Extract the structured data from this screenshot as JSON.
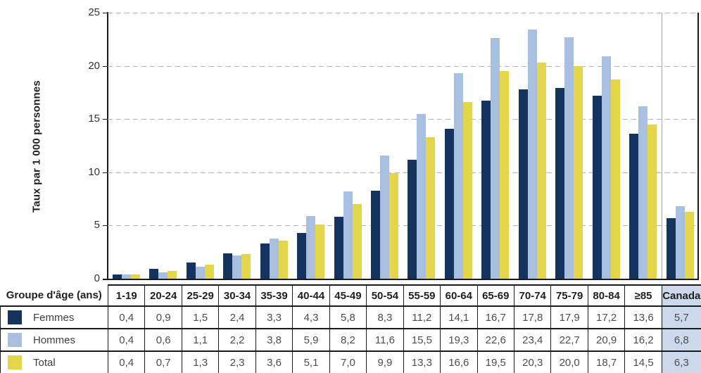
{
  "chart_data": {
    "type": "bar",
    "title": "",
    "xlabel": "",
    "ylabel": "Taux par 1 000 personnes",
    "ylim": [
      0,
      25
    ],
    "yticks": [
      0,
      5,
      10,
      15,
      20,
      25
    ],
    "grid": "horizontal-dashed",
    "legend_position": "in-table-rows",
    "categories": [
      "1-19",
      "20-24",
      "25-29",
      "30-34",
      "35-39",
      "40-44",
      "45-49",
      "50-54",
      "55-59",
      "60-64",
      "65-69",
      "70-74",
      "75-79",
      "80-84",
      "≥85",
      "Canada"
    ],
    "series": [
      {
        "name": "Femmes",
        "color": "#14335e",
        "values": [
          0.4,
          0.9,
          1.5,
          2.4,
          3.3,
          4.3,
          5.8,
          8.3,
          11.2,
          14.1,
          16.7,
          17.8,
          17.9,
          17.2,
          13.6,
          5.7
        ]
      },
      {
        "name": "Hommes",
        "color": "#a8bfe0",
        "values": [
          0.4,
          0.6,
          1.1,
          2.2,
          3.8,
          5.9,
          8.2,
          11.6,
          15.5,
          19.3,
          22.6,
          23.4,
          22.7,
          20.9,
          16.2,
          6.8
        ]
      },
      {
        "name": "Total",
        "color": "#e3d64a",
        "values": [
          0.4,
          0.7,
          1.3,
          2.3,
          3.6,
          5.1,
          7.0,
          9.9,
          13.3,
          16.6,
          19.5,
          20.3,
          20.0,
          18.7,
          14.5,
          6.3
        ]
      }
    ],
    "canada_separator_before_index": 15
  },
  "table": {
    "header_label": "Groupe d'âge (ans)",
    "columns": [
      "1-19",
      "20-24",
      "25-29",
      "30-34",
      "35-39",
      "40-44",
      "45-49",
      "50-54",
      "55-59",
      "60-64",
      "65-69",
      "70-74",
      "75-79",
      "80-84",
      "≥85",
      "Canada"
    ],
    "rows": [
      {
        "label": "Femmes",
        "swatch_color": "#14335e",
        "values": [
          "0,4",
          "0,9",
          "1,5",
          "2,4",
          "3,3",
          "4,3",
          "5,8",
          "8,3",
          "11,2",
          "14,1",
          "16,7",
          "17,8",
          "17,9",
          "17,2",
          "13,6",
          "5,7"
        ]
      },
      {
        "label": "Hommes",
        "swatch_color": "#a8bfe0",
        "values": [
          "0,4",
          "0,6",
          "1,1",
          "2,2",
          "3,8",
          "5,9",
          "8,2",
          "11,6",
          "15,5",
          "19,3",
          "22,6",
          "23,4",
          "22,7",
          "20,9",
          "16,2",
          "6,8"
        ]
      },
      {
        "label": "Total",
        "swatch_color": "#e3d64a",
        "values": [
          "0,4",
          "0,7",
          "1,3",
          "2,3",
          "3,6",
          "5,1",
          "7,0",
          "9,9",
          "13,3",
          "16,6",
          "19,5",
          "20,3",
          "20,0",
          "18,7",
          "14,5",
          "6,3"
        ]
      }
    ],
    "canada_highlight_color": "#ccd9ec"
  },
  "colors": {
    "axis": "#1a1a1a",
    "gridline": "#b3b3b3",
    "canada_separator": "#a6a6a6",
    "header_text": "#1f1f1f",
    "cell_text": "#4d4d4d"
  }
}
